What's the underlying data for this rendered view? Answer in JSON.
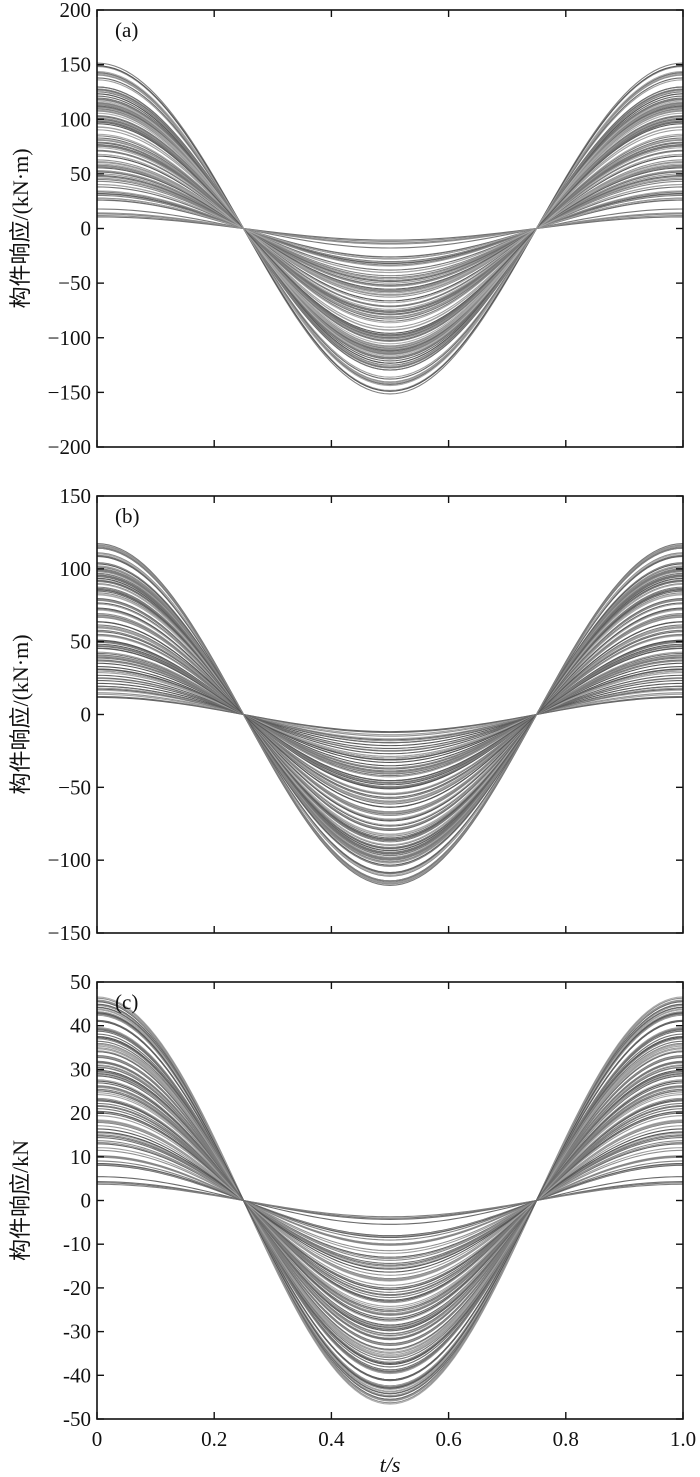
{
  "chart_data": [
    {
      "type": "line",
      "panel_label": "(a)",
      "ylabel": "构件响应/(kN·m)",
      "xlabel": "",
      "xlim": [
        0,
        1.0
      ],
      "ylim": [
        -200,
        200
      ],
      "yticks": [
        -200,
        -150,
        -100,
        -50,
        0,
        50,
        100,
        150,
        200
      ],
      "yticklabels": [
        "−200",
        "−150",
        "−100",
        "−50",
        "0",
        "50",
        "100",
        "150",
        "200"
      ],
      "xticks": [
        0,
        0.2,
        0.4,
        0.6,
        0.8,
        1.0
      ],
      "xticklabels": [],
      "curve_form": "A·cos(2πt)",
      "amplitude_range": [
        8,
        152
      ],
      "series_count": 120,
      "color": "#6e6e6e",
      "grid": false
    },
    {
      "type": "line",
      "panel_label": "(b)",
      "ylabel": "构件响应/(kN·m)",
      "xlabel": "",
      "xlim": [
        0,
        1.0
      ],
      "ylim": [
        -150,
        150
      ],
      "yticks": [
        -150,
        -100,
        -50,
        0,
        50,
        100,
        150
      ],
      "yticklabels": [
        "−150",
        "−100",
        "−50",
        "0",
        "50",
        "100",
        "150"
      ],
      "xticks": [
        0,
        0.2,
        0.4,
        0.6,
        0.8,
        1.0
      ],
      "xticklabels": [],
      "curve_form": "A·cos(2πt)",
      "amplitude_range": [
        9,
        118
      ],
      "series_count": 120,
      "color": "#6e6e6e",
      "grid": false
    },
    {
      "type": "line",
      "panel_label": "(c)",
      "ylabel": "构件响应/kN",
      "xlabel": "t/s",
      "xlim": [
        0,
        1.0
      ],
      "ylim": [
        -50,
        50
      ],
      "yticks": [
        -50,
        -40,
        -30,
        -20,
        -10,
        0,
        10,
        20,
        30,
        40,
        50
      ],
      "yticklabels": [
        "-50",
        "-40",
        "-30",
        "-20",
        "-10",
        "0",
        "10",
        "20",
        "30",
        "40",
        "50"
      ],
      "xticks": [
        0,
        0.2,
        0.4,
        0.6,
        0.8,
        1.0
      ],
      "xticklabels": [
        "0",
        "0.2",
        "0.4",
        "0.6",
        "0.8",
        "1.0"
      ],
      "curve_form": "A·cos(2πt)",
      "amplitude_range": [
        3.5,
        47
      ],
      "series_count": 120,
      "color": "#6e6e6e",
      "grid": false
    }
  ]
}
